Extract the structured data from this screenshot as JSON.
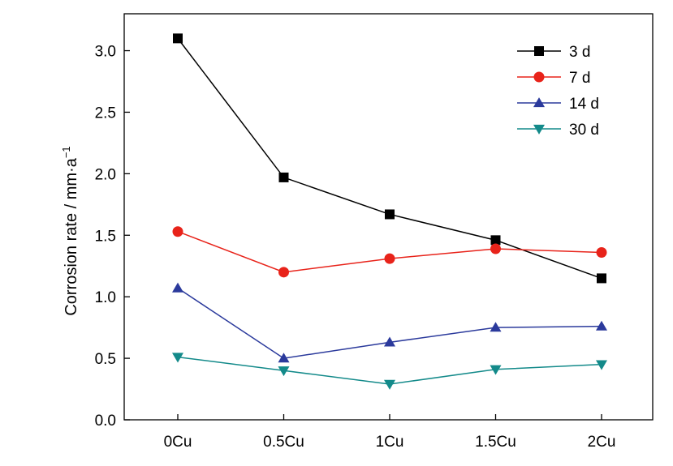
{
  "chart_data": {
    "type": "line",
    "categories": [
      "0Cu",
      "0.5Cu",
      "1Cu",
      "1.5Cu",
      "2Cu"
    ],
    "xlabel": "",
    "ylabel": "Corrosion rate / mm·a",
    "ylabel_superscript": "−1",
    "ylim": [
      0.0,
      3.3
    ],
    "yticks": [
      "0.0",
      "0.5",
      "1.0",
      "1.5",
      "2.0",
      "2.5",
      "3.0"
    ],
    "ytick_values": [
      0,
      0.5,
      1.0,
      1.5,
      2.0,
      2.5,
      3.0
    ],
    "grid": false,
    "legend_position": "top-right",
    "series": [
      {
        "name": "3 d",
        "color": "#000000",
        "marker": "square",
        "values": [
          3.1,
          1.97,
          1.67,
          1.46,
          1.15
        ]
      },
      {
        "name": "7 d",
        "color": "#e8231a",
        "marker": "circle",
        "values": [
          1.53,
          1.2,
          1.31,
          1.39,
          1.36
        ]
      },
      {
        "name": "14 d",
        "color": "#2b3a9c",
        "marker": "triangle-up",
        "values": [
          1.07,
          0.5,
          0.63,
          0.75,
          0.76
        ]
      },
      {
        "name": "30 d",
        "color": "#138a8a",
        "marker": "triangle-down",
        "values": [
          0.51,
          0.4,
          0.29,
          0.41,
          0.45
        ]
      }
    ]
  }
}
